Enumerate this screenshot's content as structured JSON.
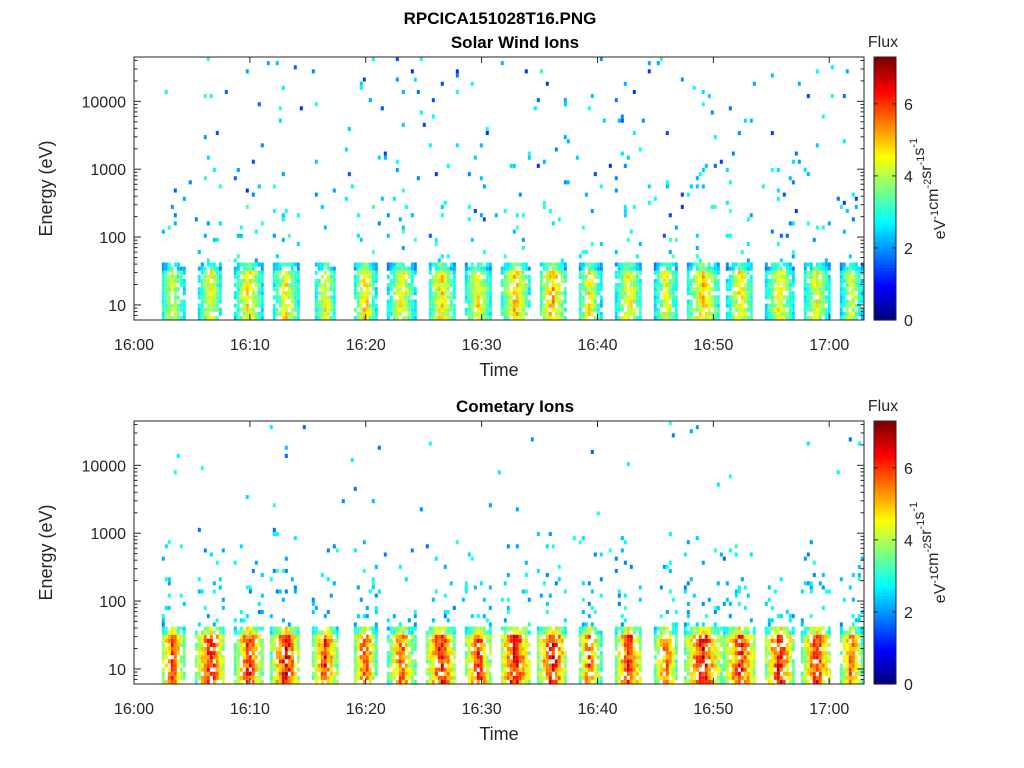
{
  "figure_title": "RPCICA151028T16.PNG",
  "chart_data": [
    {
      "type": "heatmap",
      "title": "Solar Wind Ions",
      "xlabel": "Time",
      "ylabel": "Energy (eV)",
      "x_ticks": [
        "16:00",
        "16:10",
        "16:20",
        "16:30",
        "16:40",
        "16:50",
        "17:00"
      ],
      "y_ticks": [
        "10",
        "100",
        "1000",
        "10000"
      ],
      "yscale": "log",
      "xlim": [
        "16:00",
        "17:03"
      ],
      "ylim": [
        6,
        45000
      ],
      "colorbar": {
        "label": "Flux",
        "unit": "eV-1cm-2sr-1s-1",
        "ticks": [
          "0",
          "2",
          "4",
          "6"
        ],
        "range": [
          0,
          7.3
        ],
        "colormap": "jet"
      },
      "bursts": [
        {
          "t": 3.2,
          "w": 1.2,
          "peak": 4.6
        },
        {
          "t": 6.5,
          "w": 1.0,
          "peak": 5.0
        },
        {
          "t": 9.8,
          "w": 1.2,
          "peak": 5.2
        },
        {
          "t": 13.0,
          "w": 1.2,
          "peak": 5.0
        },
        {
          "t": 16.4,
          "w": 1.0,
          "peak": 4.9
        },
        {
          "t": 19.8,
          "w": 1.0,
          "peak": 5.3
        },
        {
          "t": 23.0,
          "w": 1.2,
          "peak": 5.0
        },
        {
          "t": 26.4,
          "w": 1.2,
          "peak": 5.3
        },
        {
          "t": 29.6,
          "w": 1.2,
          "peak": 5.0
        },
        {
          "t": 32.8,
          "w": 1.2,
          "peak": 5.5
        },
        {
          "t": 36.0,
          "w": 1.2,
          "peak": 5.6
        },
        {
          "t": 39.2,
          "w": 1.0,
          "peak": 5.0
        },
        {
          "t": 42.6,
          "w": 1.2,
          "peak": 5.1
        },
        {
          "t": 45.8,
          "w": 1.0,
          "peak": 4.9
        },
        {
          "t": 49.0,
          "w": 1.5,
          "peak": 5.2
        },
        {
          "t": 52.2,
          "w": 1.2,
          "peak": 5.0
        },
        {
          "t": 55.6,
          "w": 1.2,
          "peak": 5.1
        },
        {
          "t": 58.8,
          "w": 1.2,
          "peak": 4.9
        },
        {
          "t": 61.8,
          "w": 1.0,
          "peak": 4.7
        }
      ],
      "background_level": 2.8
    },
    {
      "type": "heatmap",
      "title": "Cometary Ions",
      "xlabel": "Time",
      "ylabel": "Energy (eV)",
      "x_ticks": [
        "16:00",
        "16:10",
        "16:20",
        "16:30",
        "16:40",
        "16:50",
        "17:00"
      ],
      "y_ticks": [
        "10",
        "100",
        "1000",
        "10000"
      ],
      "yscale": "log",
      "xlim": [
        "16:00",
        "17:03"
      ],
      "ylim": [
        6,
        45000
      ],
      "colorbar": {
        "label": "Flux",
        "unit": "eV-1cm-2sr-1s-1",
        "ticks": [
          "0",
          "2",
          "4",
          "6"
        ],
        "range": [
          0,
          7.3
        ],
        "colormap": "jet"
      },
      "bursts": [
        {
          "t": 3.2,
          "w": 1.2,
          "peak": 6.2
        },
        {
          "t": 6.5,
          "w": 1.3,
          "peak": 6.8
        },
        {
          "t": 9.8,
          "w": 1.2,
          "peak": 6.7
        },
        {
          "t": 13.0,
          "w": 1.3,
          "peak": 7.0
        },
        {
          "t": 16.4,
          "w": 1.1,
          "peak": 6.6
        },
        {
          "t": 19.8,
          "w": 1.0,
          "peak": 6.5
        },
        {
          "t": 23.0,
          "w": 1.2,
          "peak": 6.2
        },
        {
          "t": 26.4,
          "w": 1.3,
          "peak": 6.9
        },
        {
          "t": 29.6,
          "w": 1.2,
          "peak": 6.6
        },
        {
          "t": 32.8,
          "w": 1.4,
          "peak": 7.0
        },
        {
          "t": 36.0,
          "w": 1.3,
          "peak": 7.0
        },
        {
          "t": 39.2,
          "w": 1.0,
          "peak": 6.3
        },
        {
          "t": 42.6,
          "w": 1.2,
          "peak": 6.7
        },
        {
          "t": 45.8,
          "w": 1.0,
          "peak": 6.3
        },
        {
          "t": 49.0,
          "w": 1.6,
          "peak": 7.0
        },
        {
          "t": 52.2,
          "w": 1.4,
          "peak": 6.8
        },
        {
          "t": 55.6,
          "w": 1.3,
          "peak": 6.9
        },
        {
          "t": 58.8,
          "w": 1.3,
          "peak": 6.8
        },
        {
          "t": 61.8,
          "w": 1.0,
          "peak": 6.2
        }
      ],
      "background_level": 2.6
    }
  ]
}
